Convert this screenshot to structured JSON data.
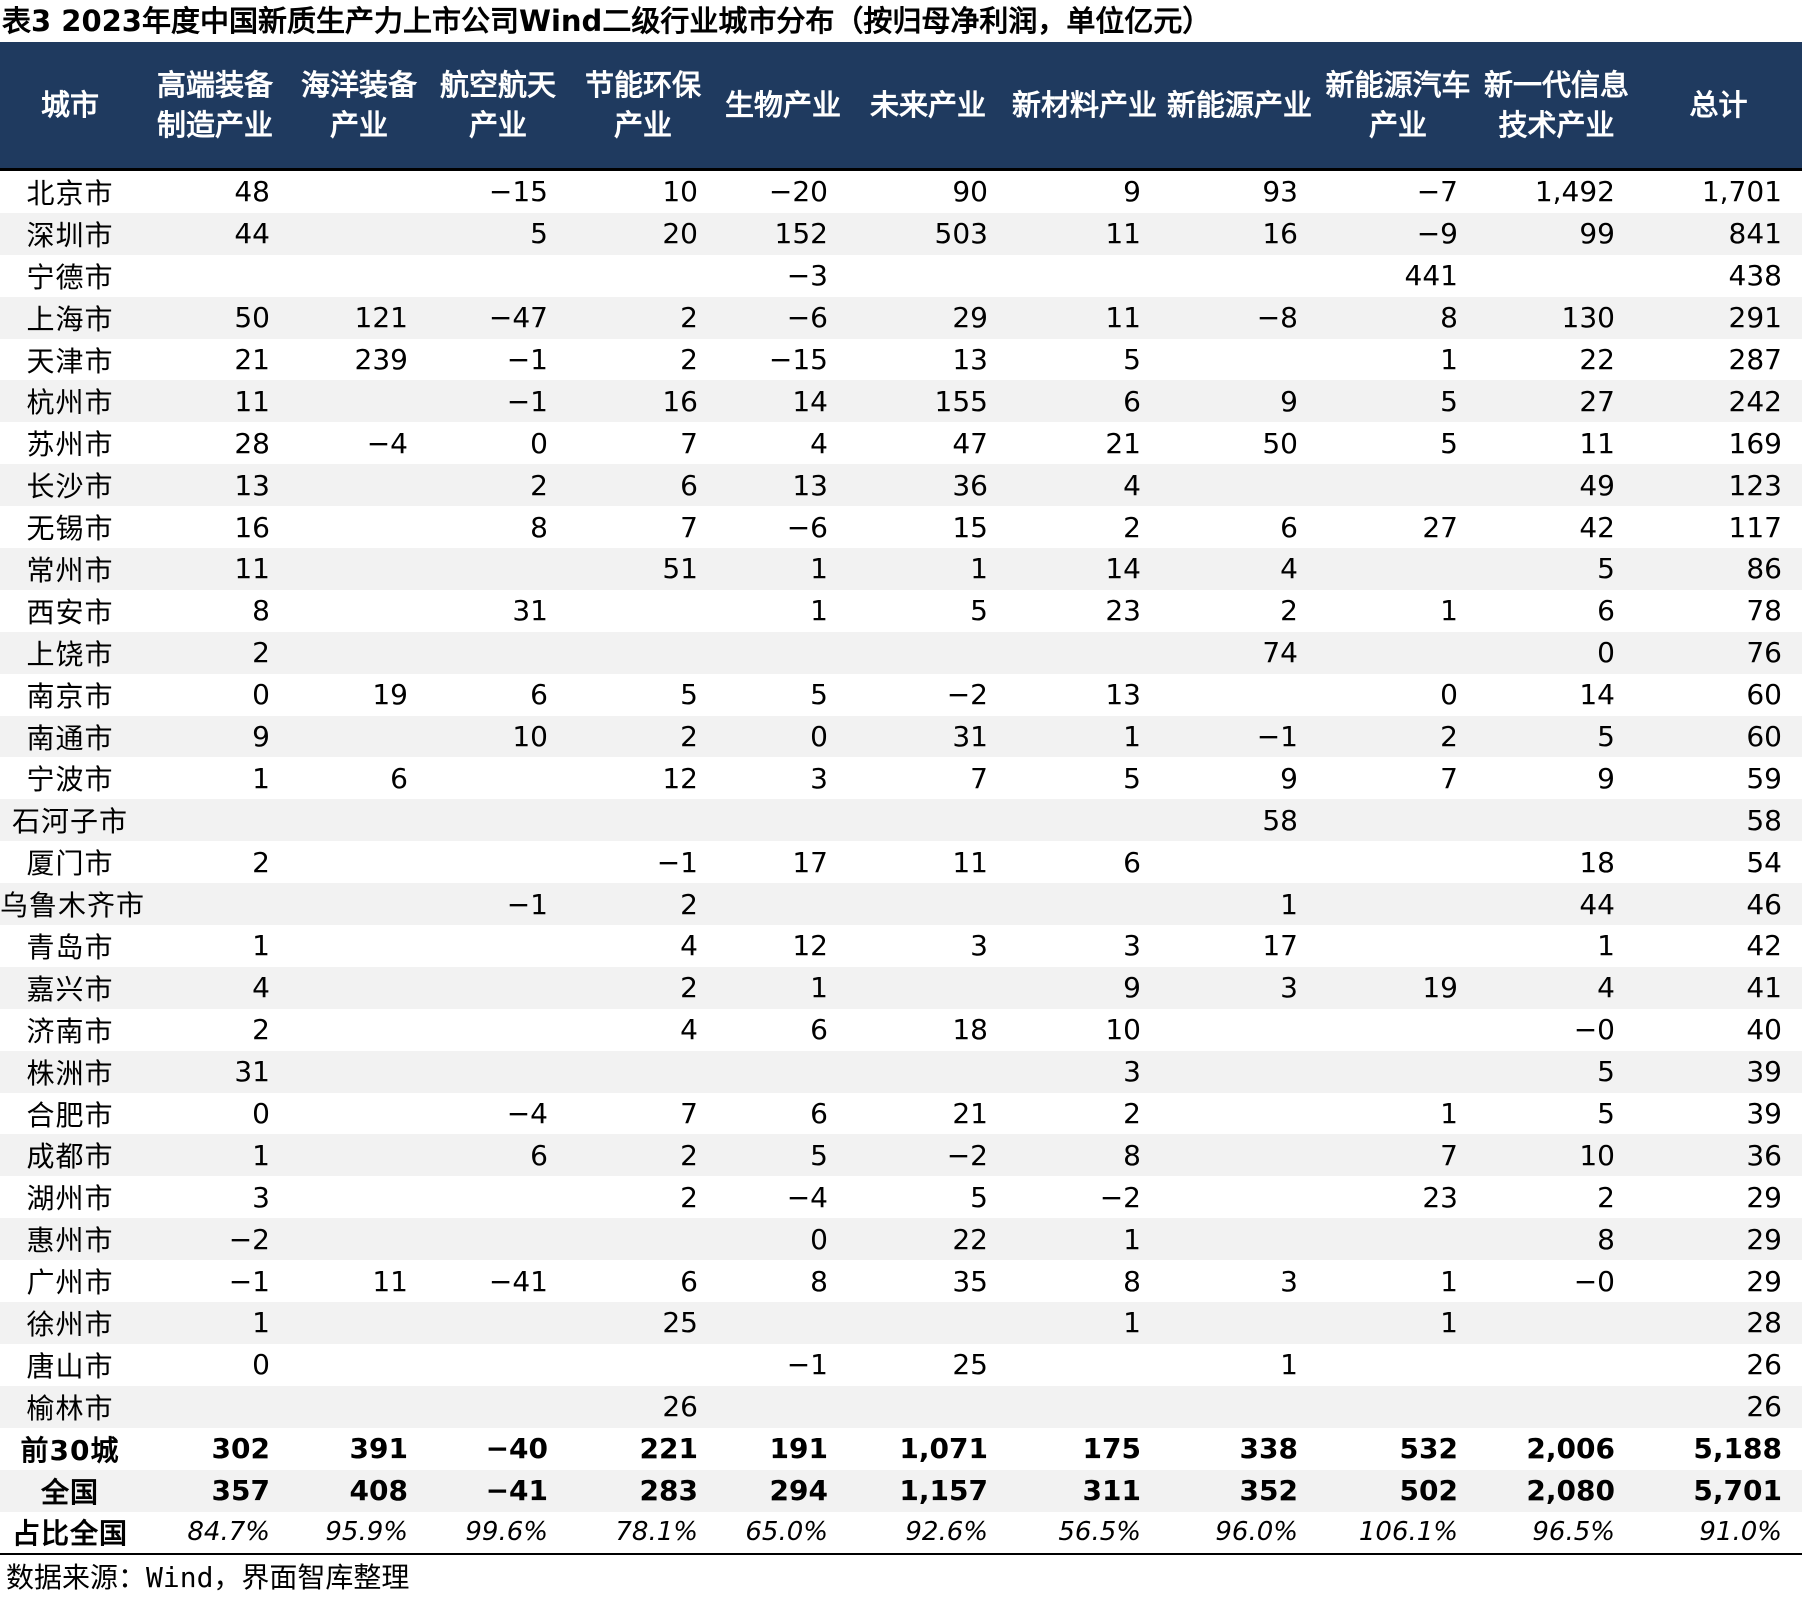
{
  "title": "表3 2023年度中国新质生产力上市公司Wind二级行业城市分布（按归母净利润，单位亿元）",
  "headers": [
    "城市",
    "高端装备制造产业",
    "海洋装备产业",
    "航空航天产业",
    "节能环保产业",
    "生物产业",
    "未来产业",
    "新材料产业",
    "新能源产业",
    "新能源汽车产业",
    "新一代信息技术产业",
    "总计"
  ],
  "rows": [
    [
      "北京市",
      "48",
      "",
      "−15",
      "10",
      "−20",
      "90",
      "9",
      "93",
      "−7",
      "1,492",
      "1,701"
    ],
    [
      "深圳市",
      "44",
      "",
      "5",
      "20",
      "152",
      "503",
      "11",
      "16",
      "−9",
      "99",
      "841"
    ],
    [
      "宁德市",
      "",
      "",
      "",
      "",
      "−3",
      "",
      "",
      "",
      "441",
      "",
      "438"
    ],
    [
      "上海市",
      "50",
      "121",
      "−47",
      "2",
      "−6",
      "29",
      "11",
      "−8",
      "8",
      "130",
      "291"
    ],
    [
      "天津市",
      "21",
      "239",
      "−1",
      "2",
      "−15",
      "13",
      "5",
      "",
      "1",
      "22",
      "287"
    ],
    [
      "杭州市",
      "11",
      "",
      "−1",
      "16",
      "14",
      "155",
      "6",
      "9",
      "5",
      "27",
      "242"
    ],
    [
      "苏州市",
      "28",
      "−4",
      "0",
      "7",
      "4",
      "47",
      "21",
      "50",
      "5",
      "11",
      "169"
    ],
    [
      "长沙市",
      "13",
      "",
      "2",
      "6",
      "13",
      "36",
      "4",
      "",
      "",
      "49",
      "123"
    ],
    [
      "无锡市",
      "16",
      "",
      "8",
      "7",
      "−6",
      "15",
      "2",
      "6",
      "27",
      "42",
      "117"
    ],
    [
      "常州市",
      "11",
      "",
      "",
      "51",
      "1",
      "1",
      "14",
      "4",
      "",
      "5",
      "86"
    ],
    [
      "西安市",
      "8",
      "",
      "31",
      "",
      "1",
      "5",
      "23",
      "2",
      "1",
      "6",
      "78"
    ],
    [
      "上饶市",
      "2",
      "",
      "",
      "",
      "",
      "",
      "",
      "74",
      "",
      "0",
      "76"
    ],
    [
      "南京市",
      "0",
      "19",
      "6",
      "5",
      "5",
      "−2",
      "13",
      "",
      "0",
      "14",
      "60"
    ],
    [
      "南通市",
      "9",
      "",
      "10",
      "2",
      "0",
      "31",
      "1",
      "−1",
      "2",
      "5",
      "60"
    ],
    [
      "宁波市",
      "1",
      "6",
      "",
      "12",
      "3",
      "7",
      "5",
      "9",
      "7",
      "9",
      "59"
    ],
    [
      "石河子市",
      "",
      "",
      "",
      "",
      "",
      "",
      "",
      "58",
      "",
      "",
      "58"
    ],
    [
      "厦门市",
      "2",
      "",
      "",
      "−1",
      "17",
      "11",
      "6",
      "",
      "",
      "18",
      "54"
    ],
    [
      "乌鲁木齐市",
      "",
      "",
      "−1",
      "2",
      "",
      "",
      "",
      "1",
      "",
      "44",
      "46"
    ],
    [
      "青岛市",
      "1",
      "",
      "",
      "4",
      "12",
      "3",
      "3",
      "17",
      "",
      "1",
      "42"
    ],
    [
      "嘉兴市",
      "4",
      "",
      "",
      "2",
      "1",
      "",
      "9",
      "3",
      "19",
      "4",
      "41"
    ],
    [
      "济南市",
      "2",
      "",
      "",
      "4",
      "6",
      "18",
      "10",
      "",
      "",
      "−0",
      "40"
    ],
    [
      "株洲市",
      "31",
      "",
      "",
      "",
      "",
      "",
      "3",
      "",
      "",
      "5",
      "39"
    ],
    [
      "合肥市",
      "0",
      "",
      "−4",
      "7",
      "6",
      "21",
      "2",
      "",
      "1",
      "5",
      "39"
    ],
    [
      "成都市",
      "1",
      "",
      "6",
      "2",
      "5",
      "−2",
      "8",
      "",
      "7",
      "10",
      "36"
    ],
    [
      "湖州市",
      "3",
      "",
      "",
      "2",
      "−4",
      "5",
      "−2",
      "",
      "23",
      "2",
      "29"
    ],
    [
      "惠州市",
      "−2",
      "",
      "",
      "",
      "0",
      "22",
      "1",
      "",
      "",
      "8",
      "29"
    ],
    [
      "广州市",
      "−1",
      "11",
      "−41",
      "6",
      "8",
      "35",
      "8",
      "3",
      "1",
      "−0",
      "29"
    ],
    [
      "徐州市",
      "1",
      "",
      "",
      "25",
      "",
      "",
      "1",
      "",
      "1",
      "",
      "28"
    ],
    [
      "唐山市",
      "0",
      "",
      "",
      "",
      "−1",
      "25",
      "",
      "1",
      "",
      "",
      "26"
    ],
    [
      "榆林市",
      "",
      "",
      "",
      "26",
      "",
      "",
      "",
      "",
      "",
      "",
      "26"
    ]
  ],
  "summary": [
    [
      "前30城",
      "302",
      "391",
      "−40",
      "221",
      "191",
      "1,071",
      "175",
      "338",
      "532",
      "2,006",
      "5,188"
    ],
    [
      "全国",
      "357",
      "408",
      "−41",
      "283",
      "294",
      "1,157",
      "311",
      "352",
      "502",
      "2,080",
      "5,701"
    ]
  ],
  "share_row": [
    "占比全国",
    "84.7%",
    "95.9%",
    "99.6%",
    "78.1%",
    "65.0%",
    "92.6%",
    "56.5%",
    "96.0%",
    "106.1%",
    "96.5%",
    "91.0%"
  ],
  "source": "数据来源：Wind，界面智库整理"
}
